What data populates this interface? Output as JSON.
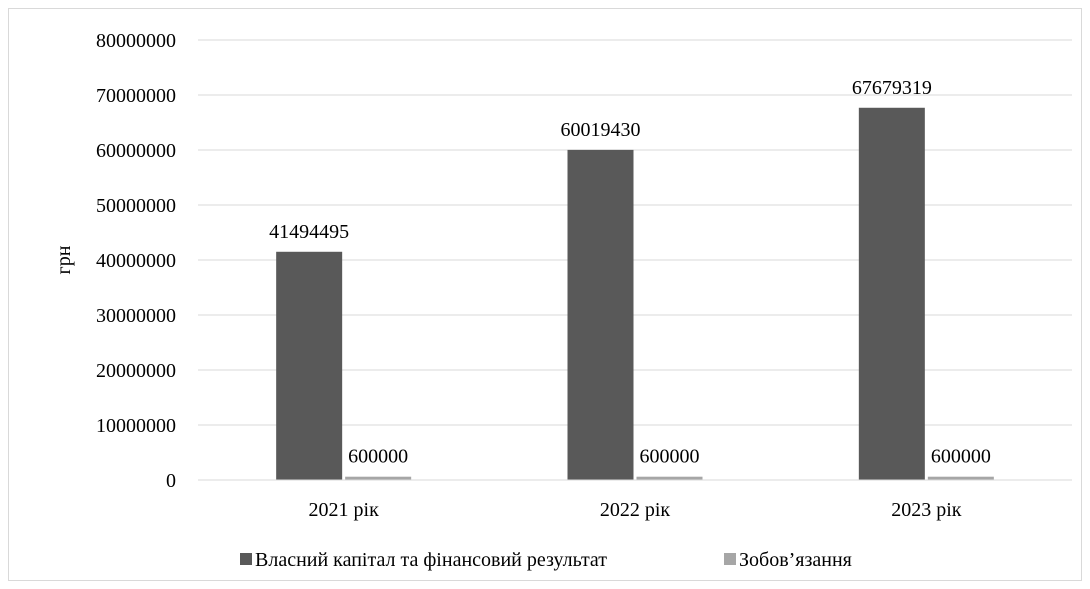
{
  "chart_data": {
    "type": "bar",
    "title": "",
    "xlabel": "",
    "ylabel": "грн",
    "ylim": [
      0,
      80000000
    ],
    "yticks": [
      0,
      10000000,
      20000000,
      30000000,
      40000000,
      50000000,
      60000000,
      70000000,
      80000000
    ],
    "categories": [
      "2021 рік",
      "2022 рік",
      "2023 рік"
    ],
    "series": [
      {
        "name": "Власний капітал та фінансовий результат",
        "values": [
          41494495,
          60019430,
          67679319
        ],
        "color": "#595959"
      },
      {
        "name": "Зобов’язання",
        "values": [
          600000,
          600000,
          600000
        ],
        "color": "#a6a6a6"
      }
    ],
    "grid": true,
    "legend": "bottom",
    "data_labels": true
  }
}
